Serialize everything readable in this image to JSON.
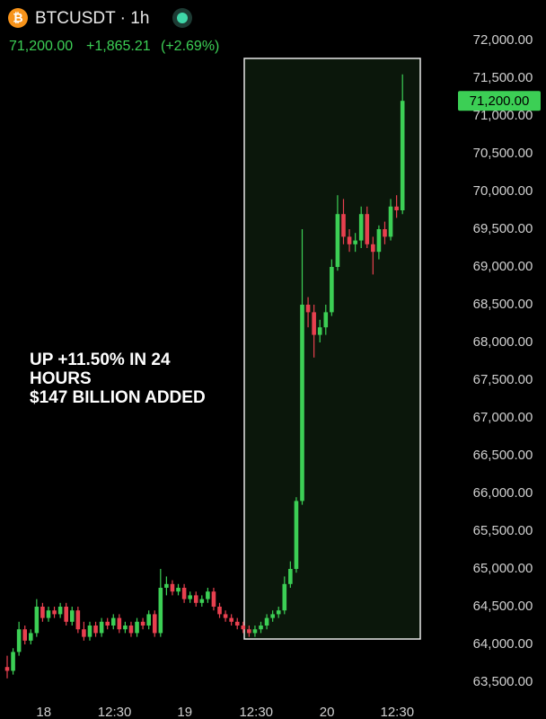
{
  "chart_data": {
    "type": "candlestick",
    "title": "BTCUSDT · 1h",
    "last_price": {
      "value": 71200,
      "label": "71,200.00"
    },
    "change": "+1,865.21",
    "change_pct": "(+2.69%)",
    "annotation": [
      "UP +11.50% IN 24",
      "HOURS",
      "$147 BILLION ADDED"
    ],
    "up_color": "#3ccf55",
    "down_color": "#e8404f",
    "open": [
      63700,
      63650,
      63900,
      64200,
      64050,
      64150,
      64500,
      64350,
      64450,
      64400,
      64500,
      64300,
      64450,
      64200,
      64100,
      64250,
      64150,
      64300,
      64250,
      64350,
      64200,
      64250,
      64150,
      64300,
      64250,
      64400,
      64150,
      64750,
      64800,
      64700,
      64750,
      64600,
      64650,
      64550,
      64600,
      64700,
      64500,
      64400,
      64350,
      64300,
      64250,
      64200,
      64150,
      64200,
      64250,
      64350,
      64400,
      64450,
      64800,
      65000,
      65900,
      68500,
      68400,
      68100,
      68200,
      68400,
      69000,
      69700,
      69400,
      69300,
      69350,
      69700,
      69300,
      69200,
      69500,
      69400,
      69800,
      69750
    ],
    "high": [
      63850,
      63950,
      64300,
      64250,
      64200,
      64600,
      64550,
      64500,
      64500,
      64550,
      64550,
      64500,
      64500,
      64300,
      64300,
      64300,
      64350,
      64350,
      64400,
      64400,
      64300,
      64300,
      64350,
      64350,
      64450,
      64450,
      65000,
      64900,
      64850,
      64800,
      64800,
      64700,
      64700,
      64650,
      64750,
      64750,
      64550,
      64450,
      64400,
      64350,
      64300,
      64250,
      64250,
      64300,
      64400,
      64450,
      64500,
      64900,
      65100,
      65950,
      69500,
      68600,
      68500,
      68300,
      68500,
      69100,
      69950,
      69900,
      69500,
      69450,
      69800,
      69800,
      69400,
      69550,
      69600,
      69900,
      69950,
      71550
    ],
    "low": [
      63550,
      63600,
      63850,
      64000,
      64000,
      64100,
      64300,
      64300,
      64350,
      64350,
      64250,
      64250,
      64150,
      64050,
      64050,
      64100,
      64100,
      64200,
      64200,
      64150,
      64150,
      64100,
      64100,
      64200,
      64200,
      64100,
      64100,
      64650,
      64650,
      64650,
      64550,
      64550,
      64500,
      64500,
      64550,
      64450,
      64350,
      64300,
      64250,
      64200,
      64150,
      64100,
      64100,
      64150,
      64200,
      64300,
      64350,
      64400,
      64750,
      64950,
      65850,
      68200,
      67800,
      68000,
      68100,
      68350,
      68950,
      69300,
      69200,
      69200,
      69250,
      69250,
      68900,
      69100,
      69300,
      69350,
      69650,
      69700
    ],
    "close": [
      63650,
      63900,
      64200,
      64050,
      64150,
      64500,
      64350,
      64450,
      64400,
      64500,
      64300,
      64450,
      64200,
      64100,
      64250,
      64150,
      64300,
      64250,
      64350,
      64200,
      64250,
      64150,
      64300,
      64250,
      64400,
      64150,
      64750,
      64800,
      64700,
      64750,
      64600,
      64650,
      64550,
      64600,
      64700,
      64500,
      64400,
      64350,
      64300,
      64250,
      64200,
      64150,
      64200,
      64250,
      64350,
      64400,
      64450,
      64800,
      65000,
      65900,
      68500,
      68400,
      68100,
      68200,
      68400,
      69000,
      69700,
      69400,
      69300,
      69350,
      69700,
      69300,
      69200,
      69500,
      69400,
      69800,
      69750,
      71200
    ],
    "ylim": [
      63350,
      72150
    ],
    "yticks": [
      {
        "value": 63500,
        "label": "63,500.00"
      },
      {
        "value": 64000,
        "label": "64,000.00"
      },
      {
        "value": 64500,
        "label": "64,500.00"
      },
      {
        "value": 65000,
        "label": "65,000.00"
      },
      {
        "value": 65500,
        "label": "65,500.00"
      },
      {
        "value": 66000,
        "label": "66,000.00"
      },
      {
        "value": 66500,
        "label": "66,500.00"
      },
      {
        "value": 67000,
        "label": "67,000.00"
      },
      {
        "value": 67500,
        "label": "67,500.00"
      },
      {
        "value": 68000,
        "label": "68,000.00"
      },
      {
        "value": 68500,
        "label": "68,500.00"
      },
      {
        "value": 69000,
        "label": "69,000.00"
      },
      {
        "value": 69500,
        "label": "69,500.00"
      },
      {
        "value": 70000,
        "label": "70,000.00"
      },
      {
        "value": 70500,
        "label": "70,500.00"
      },
      {
        "value": 71000,
        "label": "71,000.00"
      },
      {
        "value": 71500,
        "label": "71,500.00"
      },
      {
        "value": 72000,
        "label": "72,000.00"
      }
    ],
    "xticks": [
      {
        "value": 6.2,
        "label": "18"
      },
      {
        "value": 18.2,
        "label": "12:30"
      },
      {
        "value": 30.1,
        "label": "19"
      },
      {
        "value": 42.2,
        "label": "12:30"
      },
      {
        "value": 54.2,
        "label": "20"
      },
      {
        "value": 66.1,
        "label": "12:30"
      }
    ]
  }
}
